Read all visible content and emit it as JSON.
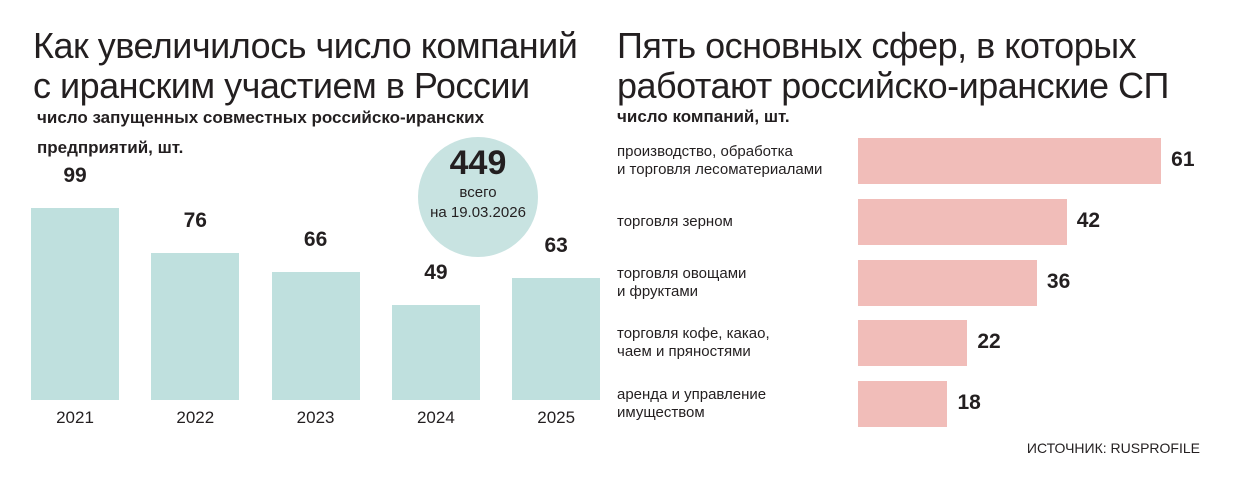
{
  "chart_data": [
    {
      "type": "bar",
      "title": "Как увеличилось число компаний\nс иранским участием в России",
      "subtitle": "число запущенных совместных российско-иранских\nпредприятий, шт.",
      "categories": [
        "2021",
        "2022",
        "2023",
        "2024",
        "2025"
      ],
      "values": [
        99,
        76,
        66,
        49,
        63
      ],
      "color": "#bfe0de",
      "annotation": {
        "value": 449,
        "text": "всего\nна 19.03.2026"
      }
    },
    {
      "type": "barh",
      "title": "Пять основных сфер, в которых\nработают российско-иранские СП",
      "subtitle": "число компаний, шт.",
      "categories": [
        "производство, обработка\nи торговля лесоматериалами",
        "торговля зерном",
        "торговля овощами\nи фруктами",
        "торговля кофе, какао,\nчаем и пряностями",
        "аренда и управление\nимуществом"
      ],
      "values": [
        61,
        42,
        36,
        22,
        18
      ],
      "color": "#f1bdb9"
    }
  ],
  "source": "ИСТОЧНИК: RUSPROFILE"
}
